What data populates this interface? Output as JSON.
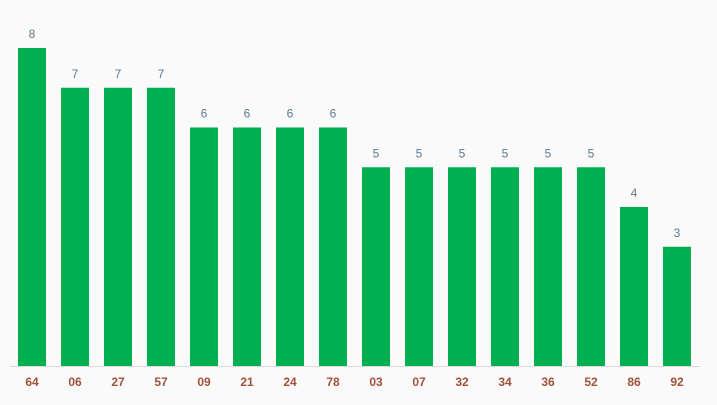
{
  "chart_data": {
    "type": "bar",
    "categories": [
      "64",
      "06",
      "27",
      "57",
      "09",
      "21",
      "24",
      "78",
      "03",
      "07",
      "32",
      "34",
      "36",
      "52",
      "86",
      "92"
    ],
    "values": [
      8,
      7,
      7,
      7,
      6,
      6,
      6,
      6,
      5,
      5,
      5,
      5,
      5,
      5,
      4,
      3
    ],
    "color": "#00b050"
  }
}
